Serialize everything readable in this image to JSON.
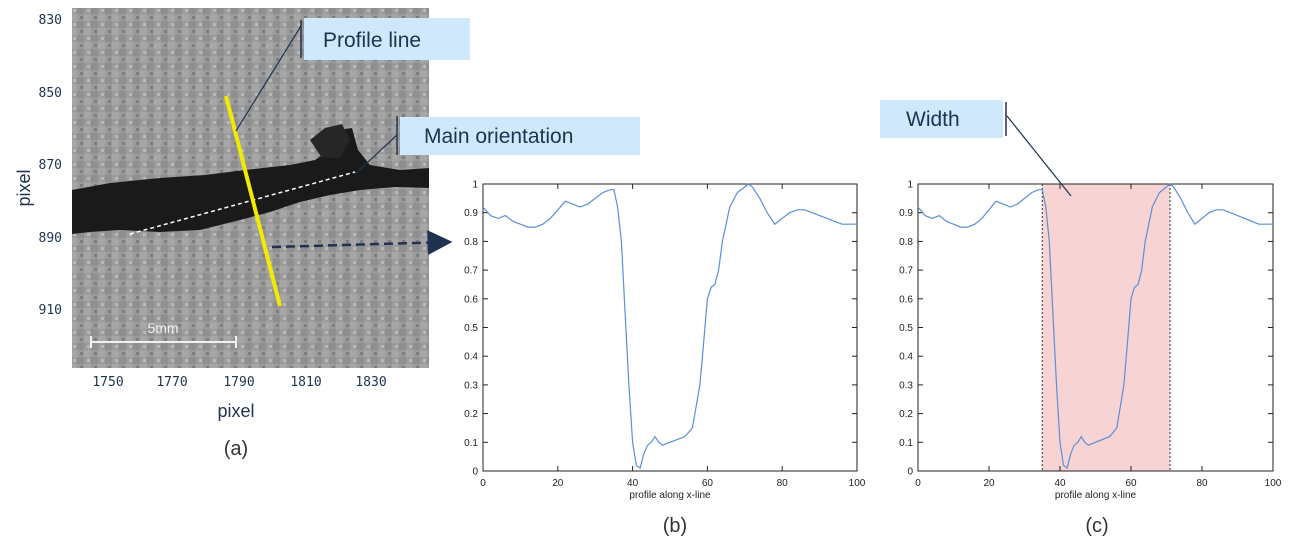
{
  "panel_a": {
    "y_ticks": [
      "830",
      "850",
      "870",
      "890",
      "910"
    ],
    "x_ticks": [
      "1750",
      "1770",
      "1790",
      "1810",
      "1830"
    ],
    "ylabel": "pixel",
    "xlabel": "pixel",
    "scale_bar_label": "5mm",
    "caption": "(a)",
    "profile_line_label": "Profile line",
    "main_orientation_label": "Main orientation",
    "profile_line_color": "#f2ea00"
  },
  "panel_c": {
    "width_label": "Width",
    "highlight_color": "#f8d3d3",
    "width_bounds_x": [
      35,
      71
    ]
  },
  "captions": {
    "b": "(b)",
    "c": "(c)"
  },
  "callout_fill": "#cfe8fb",
  "chart_data": [
    {
      "type": "line",
      "xlabel": "profile along x-line",
      "xlim": [
        0,
        100
      ],
      "ylim": [
        0,
        1
      ],
      "x_ticks": [
        "0",
        "20",
        "40",
        "60",
        "80",
        "100"
      ],
      "y_ticks": [
        "0",
        "0.1",
        "0.2",
        "0.3",
        "0.4",
        "0.5",
        "0.6",
        "0.7",
        "0.8",
        "0.9",
        "1"
      ],
      "line_color": "#5b8fd6",
      "x": [
        0,
        2,
        4,
        6,
        8,
        10,
        12,
        14,
        16,
        18,
        20,
        22,
        24,
        26,
        28,
        30,
        32,
        34,
        35,
        36,
        37,
        38,
        39,
        40,
        41,
        42,
        43,
        44,
        45,
        46,
        47,
        48,
        50,
        52,
        54,
        56,
        58,
        59,
        60,
        61,
        62,
        63,
        64,
        66,
        68,
        70,
        71,
        72,
        74,
        76,
        78,
        80,
        82,
        84,
        86,
        88,
        90,
        92,
        94,
        96,
        98,
        100
      ],
      "y": [
        0.92,
        0.89,
        0.88,
        0.89,
        0.87,
        0.86,
        0.85,
        0.85,
        0.86,
        0.88,
        0.91,
        0.94,
        0.93,
        0.92,
        0.93,
        0.95,
        0.97,
        0.98,
        0.98,
        0.92,
        0.8,
        0.55,
        0.3,
        0.1,
        0.02,
        0.01,
        0.06,
        0.09,
        0.1,
        0.12,
        0.1,
        0.09,
        0.1,
        0.11,
        0.12,
        0.15,
        0.3,
        0.45,
        0.6,
        0.64,
        0.65,
        0.7,
        0.8,
        0.92,
        0.97,
        0.99,
        1.0,
        0.99,
        0.95,
        0.9,
        0.86,
        0.88,
        0.9,
        0.91,
        0.91,
        0.9,
        0.89,
        0.88,
        0.87,
        0.86,
        0.86,
        0.86
      ]
    },
    {
      "type": "line",
      "xlabel": "profile along x-line",
      "xlim": [
        0,
        100
      ],
      "ylim": [
        0,
        1
      ],
      "x_ticks": [
        "0",
        "20",
        "40",
        "60",
        "80",
        "100"
      ],
      "y_ticks": [
        "0",
        "0.1",
        "0.2",
        "0.3",
        "0.4",
        "0.5",
        "0.6",
        "0.7",
        "0.8",
        "0.9",
        "1"
      ],
      "line_color": "#5b8fd6",
      "x": [
        0,
        2,
        4,
        6,
        8,
        10,
        12,
        14,
        16,
        18,
        20,
        22,
        24,
        26,
        28,
        30,
        32,
        34,
        35,
        36,
        37,
        38,
        39,
        40,
        41,
        42,
        43,
        44,
        45,
        46,
        47,
        48,
        50,
        52,
        54,
        56,
        58,
        59,
        60,
        61,
        62,
        63,
        64,
        66,
        68,
        70,
        71,
        72,
        74,
        76,
        78,
        80,
        82,
        84,
        86,
        88,
        90,
        92,
        94,
        96,
        98,
        100
      ],
      "y": [
        0.92,
        0.89,
        0.88,
        0.89,
        0.87,
        0.86,
        0.85,
        0.85,
        0.86,
        0.88,
        0.91,
        0.94,
        0.93,
        0.92,
        0.93,
        0.95,
        0.97,
        0.98,
        0.98,
        0.92,
        0.8,
        0.55,
        0.3,
        0.1,
        0.02,
        0.01,
        0.06,
        0.09,
        0.1,
        0.12,
        0.1,
        0.09,
        0.1,
        0.11,
        0.12,
        0.15,
        0.3,
        0.45,
        0.6,
        0.64,
        0.65,
        0.7,
        0.8,
        0.92,
        0.97,
        0.99,
        1.0,
        0.99,
        0.95,
        0.9,
        0.86,
        0.88,
        0.9,
        0.91,
        0.91,
        0.9,
        0.89,
        0.88,
        0.87,
        0.86,
        0.86,
        0.86
      ]
    }
  ]
}
